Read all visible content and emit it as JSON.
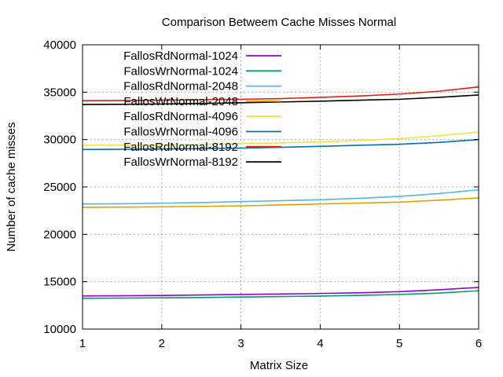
{
  "chart_data": {
    "type": "line",
    "title": "Comparison Betweem Cache Misses Normal",
    "xlabel": "Matrix Size",
    "ylabel": "Number of cache misses",
    "xlim": [
      1,
      6
    ],
    "ylim": [
      10000,
      40000
    ],
    "xticks": [
      1,
      2,
      3,
      4,
      5,
      6
    ],
    "yticks": [
      10000,
      15000,
      20000,
      25000,
      30000,
      35000,
      40000
    ],
    "grid": true,
    "legend_position": "top-left",
    "x": [
      1,
      1.5,
      2,
      2.5,
      3,
      3.5,
      4,
      4.5,
      5,
      5.5,
      6
    ],
    "series": [
      {
        "name": "FallosRdNormal-1024",
        "color": "#9400d3",
        "values": [
          13500,
          13520,
          13550,
          13600,
          13650,
          13700,
          13760,
          13830,
          13950,
          14150,
          14400
        ]
      },
      {
        "name": "FallosWrNormal-1024",
        "color": "#009e73",
        "values": [
          13250,
          13270,
          13300,
          13330,
          13380,
          13430,
          13490,
          13560,
          13650,
          13800,
          14050
        ]
      },
      {
        "name": "FallosRdNormal-2048",
        "color": "#56b4e9",
        "values": [
          23200,
          23220,
          23280,
          23350,
          23450,
          23550,
          23650,
          23800,
          24000,
          24300,
          24700
        ]
      },
      {
        "name": "FallosWrNormal-2048",
        "color": "#e69f00",
        "values": [
          22850,
          22870,
          22900,
          22950,
          23000,
          23100,
          23200,
          23300,
          23400,
          23600,
          23850
        ]
      },
      {
        "name": "FallosRdNormal-4096",
        "color": "#f0e442",
        "values": [
          29400,
          29420,
          29450,
          29500,
          29580,
          29650,
          29750,
          29900,
          30100,
          30400,
          30800
        ]
      },
      {
        "name": "FallosWrNormal-4096",
        "color": "#0072b2",
        "values": [
          28950,
          28970,
          29000,
          29050,
          29100,
          29180,
          29280,
          29400,
          29500,
          29700,
          30000
        ]
      },
      {
        "name": "FallosRdNormal-8192",
        "color": "#e51e10",
        "values": [
          34100,
          34120,
          34150,
          34200,
          34250,
          34320,
          34450,
          34600,
          34800,
          35100,
          35550
        ]
      },
      {
        "name": "FallosWrNormal-8192",
        "color": "#000000",
        "values": [
          33700,
          33720,
          33750,
          33800,
          33880,
          33960,
          34050,
          34150,
          34250,
          34450,
          34700
        ]
      }
    ]
  }
}
